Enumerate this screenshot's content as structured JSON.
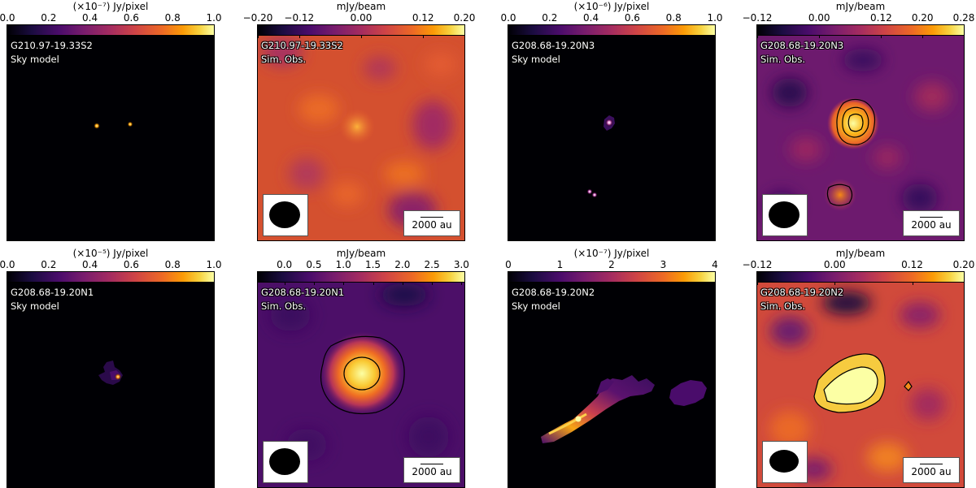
{
  "colormap": "inferno",
  "scale_bar_label": "2000 au",
  "panels": [
    {
      "source": "G210.97-19.33S2",
      "kind": "Sky model",
      "cbar_label": "(×10⁻⁷) Jy/pixel",
      "ticks": [
        "0.0",
        "0.2",
        "0.4",
        "0.6",
        "0.8",
        "1.0"
      ],
      "tick_values": [
        0,
        0.2,
        0.4,
        0.6,
        0.8,
        1.0
      ],
      "range": [
        0,
        1
      ],
      "beam": false,
      "scale_bar": false
    },
    {
      "source": "G210.97-19.33S2",
      "kind": "Sim. Obs.",
      "cbar_label": "mJy/beam",
      "ticks": [
        "−0.20",
        "−0.12",
        "0.00",
        "0.12",
        "0.20"
      ],
      "tick_values": [
        -0.2,
        -0.12,
        0,
        0.12,
        0.2
      ],
      "range": [
        -0.2,
        0.2
      ],
      "beam": true,
      "scale_bar": true
    },
    {
      "source": "G208.68-19.20N3",
      "kind": "Sky model",
      "cbar_label": "(×10⁻⁶) Jy/pixel",
      "ticks": [
        "0.0",
        "0.2",
        "0.4",
        "0.6",
        "0.8",
        "1.0"
      ],
      "tick_values": [
        0,
        0.2,
        0.4,
        0.6,
        0.8,
        1.0
      ],
      "range": [
        0,
        1
      ],
      "beam": false,
      "scale_bar": false
    },
    {
      "source": "G208.68-19.20N3",
      "kind": "Sim. Obs.",
      "cbar_label": "mJy/beam",
      "ticks": [
        "−0.12",
        "0.00",
        "0.12",
        "0.20",
        "0.28"
      ],
      "tick_values": [
        -0.12,
        0,
        0.12,
        0.2,
        0.28
      ],
      "range": [
        -0.12,
        0.28
      ],
      "beam": true,
      "scale_bar": true
    },
    {
      "source": "G208.68-19.20N1",
      "kind": "Sky model",
      "cbar_label": "(×10⁻⁵) Jy/pixel",
      "ticks": [
        "0.0",
        "0.2",
        "0.4",
        "0.6",
        "0.8",
        "1.0"
      ],
      "tick_values": [
        0,
        0.2,
        0.4,
        0.6,
        0.8,
        1.0
      ],
      "range": [
        0,
        1
      ],
      "beam": false,
      "scale_bar": false
    },
    {
      "source": "G208.68-19.20N1",
      "kind": "Sim. Obs.",
      "cbar_label": "mJy/beam",
      "ticks": [
        "0.0",
        "0.5",
        "1.0",
        "1.5",
        "2.0",
        "2.5",
        "3.0"
      ],
      "tick_values": [
        0,
        0.5,
        1,
        1.5,
        2,
        2.5,
        3
      ],
      "range": [
        -0.45,
        3.05
      ],
      "beam": true,
      "scale_bar": true
    },
    {
      "source": "G208.68-19.20N2",
      "kind": "Sky model",
      "cbar_label": "(×10⁻⁷) Jy/pixel",
      "ticks": [
        "0",
        "1",
        "2",
        "3",
        "4"
      ],
      "tick_values": [
        0,
        1,
        2,
        3,
        4
      ],
      "range": [
        0,
        4
      ],
      "beam": false,
      "scale_bar": false
    },
    {
      "source": "G208.68-19.20N2",
      "kind": "Sim. Obs.",
      "cbar_label": "mJy/beam",
      "ticks": [
        "−0.12",
        "0.00",
        "0.12",
        "0.20"
      ],
      "tick_values": [
        -0.12,
        0,
        0.12,
        0.2
      ],
      "range": [
        -0.12,
        0.2
      ],
      "beam": true,
      "scale_bar": true
    }
  ]
}
